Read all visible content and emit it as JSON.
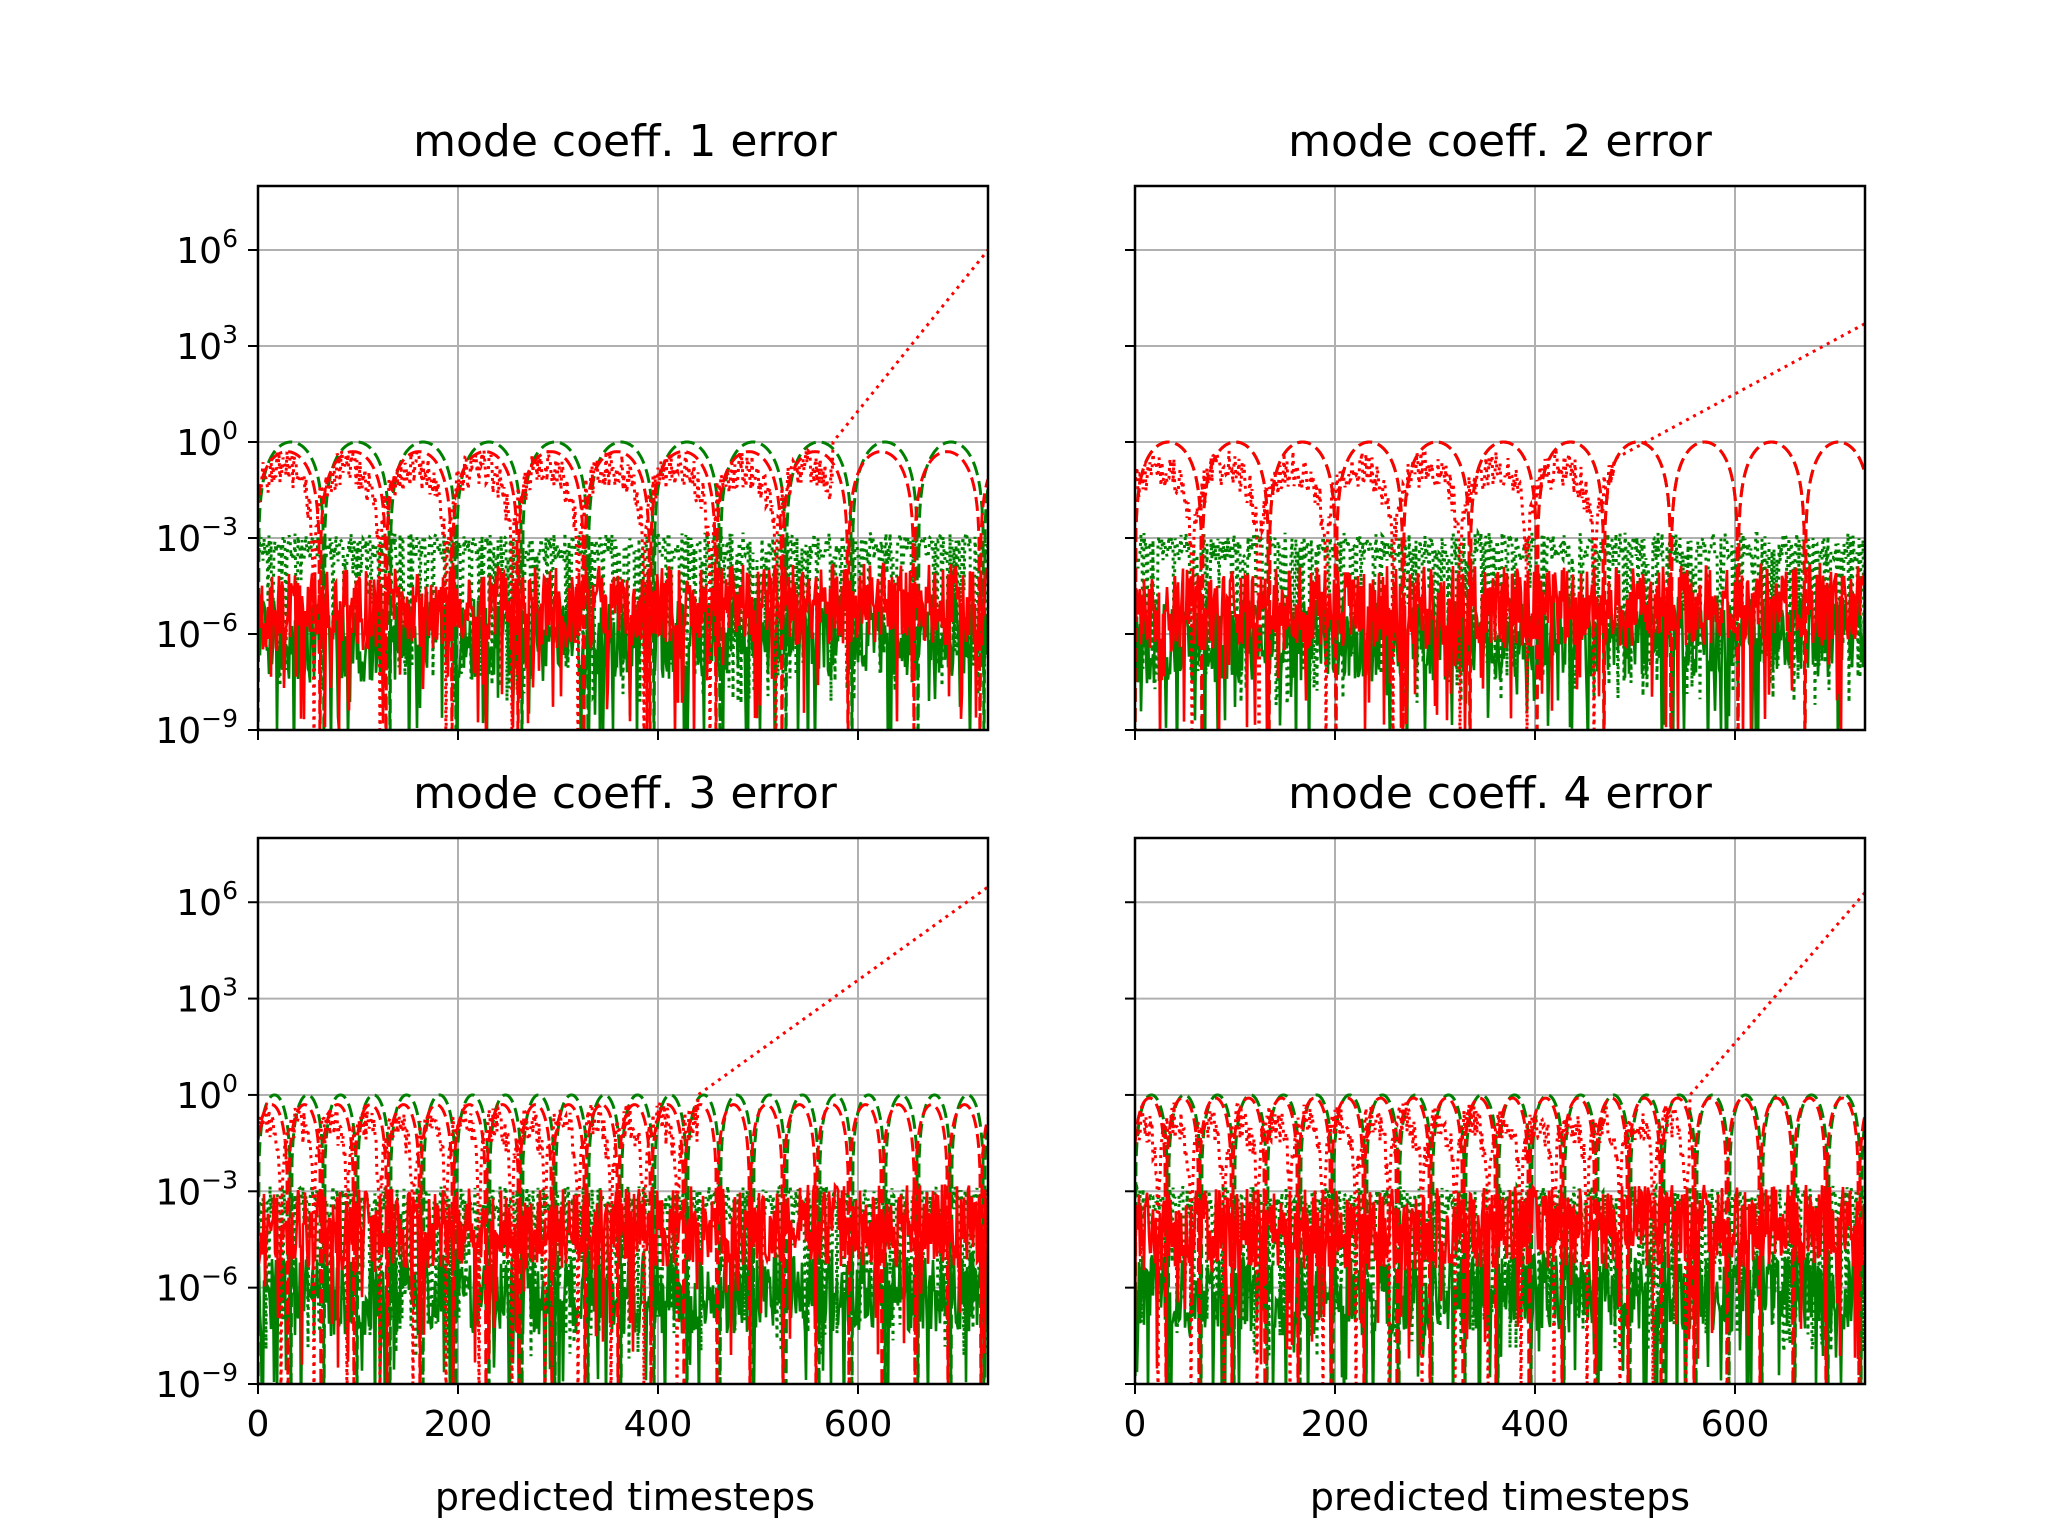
{
  "chart_data": [
    {
      "type": "line",
      "title": "mode coeff. 1 error",
      "xlabel": "",
      "ylabel": "",
      "xlim": [
        0,
        730
      ],
      "ylim": [
        1e-09,
        100000000.0
      ],
      "yscale": "log",
      "xticks": [
        0,
        200,
        400,
        600
      ],
      "xtick_labels_visible": false,
      "yticks": [
        {
          "value": 1e-09,
          "base": "10",
          "exp": "−9"
        },
        {
          "value": 1e-06,
          "base": "10",
          "exp": "−6"
        },
        {
          "value": 0.001,
          "base": "10",
          "exp": "−3"
        },
        {
          "value": 1,
          "base": "10",
          "exp": "0"
        },
        {
          "value": 1000.0,
          "base": "10",
          "exp": "3"
        },
        {
          "value": 1000000.0,
          "base": "10",
          "exp": "6"
        }
      ],
      "ytick_labels_visible": true,
      "grid": true,
      "arch_period": 66,
      "growth": {
        "start_x": 575,
        "start_value": 1,
        "end_value": 1000000
      },
      "series": [
        {
          "color": "#008000",
          "style": "dashed",
          "pattern": "arch",
          "peak": 1.0,
          "phase": 0
        },
        {
          "color": "#008000",
          "style": "dotted",
          "pattern": "band",
          "level": 0.0015
        },
        {
          "color": "#008000",
          "style": "solid",
          "pattern": "noise",
          "level": 1e-06
        },
        {
          "color": "#ff0000",
          "style": "dashed",
          "pattern": "arch",
          "peak": 0.5,
          "phase": 4
        },
        {
          "color": "#ff0000",
          "style": "dotted",
          "pattern": "growth"
        },
        {
          "color": "#ff0000",
          "style": "solid",
          "pattern": "noise",
          "level": 1e-05
        }
      ]
    },
    {
      "type": "line",
      "title": "mode coeff. 2 error",
      "xlabel": "",
      "ylabel": "",
      "xlim": [
        0,
        730
      ],
      "ylim": [
        1e-09,
        100000000.0
      ],
      "yscale": "log",
      "xticks": [
        0,
        200,
        400,
        600
      ],
      "xtick_labels_visible": false,
      "yticks": [
        {
          "value": 1e-09,
          "base": "10",
          "exp": "−9"
        },
        {
          "value": 1e-06,
          "base": "10",
          "exp": "−6"
        },
        {
          "value": 0.001,
          "base": "10",
          "exp": "−3"
        },
        {
          "value": 1,
          "base": "10",
          "exp": "0"
        },
        {
          "value": 1000.0,
          "base": "10",
          "exp": "3"
        },
        {
          "value": 1000000.0,
          "base": "10",
          "exp": "6"
        }
      ],
      "ytick_labels_visible": false,
      "grid": true,
      "arch_period": 67,
      "growth": {
        "start_x": 480,
        "start_value": 0.3,
        "end_value": 5000
      },
      "series": [
        {
          "color": "#008000",
          "style": "dashed",
          "pattern": "arch",
          "peak": 1.0,
          "phase": 0
        },
        {
          "color": "#008000",
          "style": "dotted",
          "pattern": "band",
          "level": 0.0015
        },
        {
          "color": "#008000",
          "style": "solid",
          "pattern": "noise",
          "level": 1e-06
        },
        {
          "color": "#ff0000",
          "style": "dashed",
          "pattern": "arch",
          "peak": 1.0,
          "phase": 0
        },
        {
          "color": "#ff0000",
          "style": "dotted",
          "pattern": "growth"
        },
        {
          "color": "#ff0000",
          "style": "solid",
          "pattern": "noise",
          "level": 1e-05
        }
      ]
    },
    {
      "type": "line",
      "title": "mode coeff. 3 error",
      "xlabel": "predicted timesteps",
      "ylabel": "",
      "xlim": [
        0,
        730
      ],
      "ylim": [
        1e-09,
        100000000.0
      ],
      "yscale": "log",
      "xticks": [
        0,
        200,
        400,
        600
      ],
      "xtick_labels_visible": true,
      "yticks": [
        {
          "value": 1e-09,
          "base": "10",
          "exp": "−9"
        },
        {
          "value": 1e-06,
          "base": "10",
          "exp": "−6"
        },
        {
          "value": 0.001,
          "base": "10",
          "exp": "−3"
        },
        {
          "value": 1,
          "base": "10",
          "exp": "0"
        },
        {
          "value": 1000.0,
          "base": "10",
          "exp": "3"
        },
        {
          "value": 1000000.0,
          "base": "10",
          "exp": "6"
        }
      ],
      "ytick_labels_visible": true,
      "grid": true,
      "arch_period": 33,
      "growth": {
        "start_x": 440,
        "start_value": 1,
        "end_value": 3000000
      },
      "series": [
        {
          "color": "#008000",
          "style": "dashed",
          "pattern": "arch",
          "peak": 1.0,
          "phase": 0
        },
        {
          "color": "#008000",
          "style": "dotted",
          "pattern": "band",
          "level": 0.0015
        },
        {
          "color": "#008000",
          "style": "solid",
          "pattern": "noise",
          "level": 1e-06
        },
        {
          "color": "#ff0000",
          "style": "dashed",
          "pattern": "arch",
          "peak": 0.5,
          "phase": 3
        },
        {
          "color": "#ff0000",
          "style": "dotted",
          "pattern": "growth"
        },
        {
          "color": "#ff0000",
          "style": "solid",
          "pattern": "noise",
          "level": 0.0001
        }
      ]
    },
    {
      "type": "line",
      "title": "mode coeff. 4 error",
      "xlabel": "predicted timesteps",
      "ylabel": "",
      "xlim": [
        0,
        730
      ],
      "ylim": [
        1e-09,
        100000000.0
      ],
      "yscale": "log",
      "xticks": [
        0,
        200,
        400,
        600
      ],
      "xtick_labels_visible": true,
      "yticks": [
        {
          "value": 1e-09,
          "base": "10",
          "exp": "−9"
        },
        {
          "value": 1e-06,
          "base": "10",
          "exp": "−6"
        },
        {
          "value": 0.001,
          "base": "10",
          "exp": "−3"
        },
        {
          "value": 1,
          "base": "10",
          "exp": "0"
        },
        {
          "value": 1000.0,
          "base": "10",
          "exp": "3"
        },
        {
          "value": 1000000.0,
          "base": "10",
          "exp": "6"
        }
      ],
      "ytick_labels_visible": false,
      "grid": true,
      "arch_period": 33,
      "growth": {
        "start_x": 555,
        "start_value": 1,
        "end_value": 2000000
      },
      "series": [
        {
          "color": "#008000",
          "style": "dashed",
          "pattern": "arch",
          "peak": 1.0,
          "phase": 0
        },
        {
          "color": "#008000",
          "style": "dotted",
          "pattern": "band",
          "level": 0.0015
        },
        {
          "color": "#008000",
          "style": "solid",
          "pattern": "noise",
          "level": 1e-06
        },
        {
          "color": "#ff0000",
          "style": "dashed",
          "pattern": "arch",
          "peak": 0.8,
          "phase": 2
        },
        {
          "color": "#ff0000",
          "style": "dotted",
          "pattern": "growth"
        },
        {
          "color": "#ff0000",
          "style": "solid",
          "pattern": "noise",
          "level": 0.0001
        }
      ]
    }
  ]
}
